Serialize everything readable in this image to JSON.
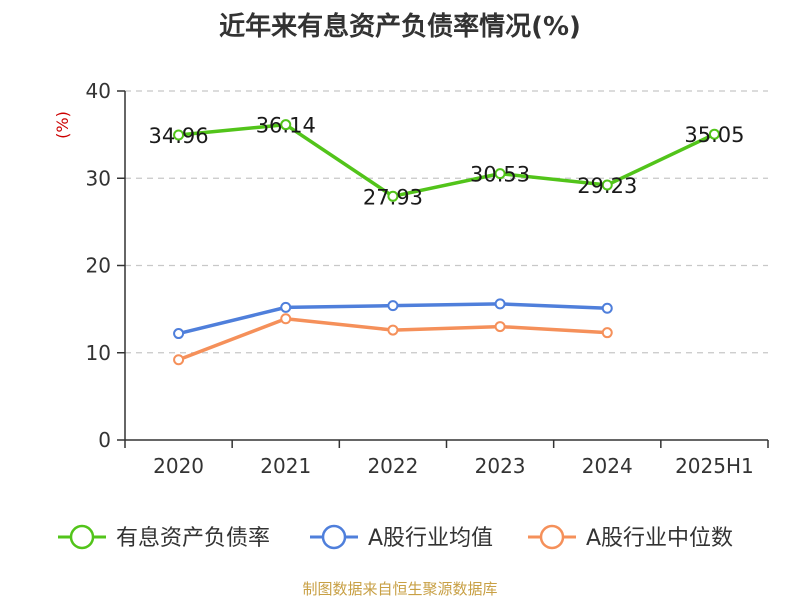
{
  "chart_data": {
    "type": "line",
    "title": "近年来有息资产负债率情况(%)",
    "ylabel": "(%)",
    "xlabel": "",
    "categories": [
      "2020",
      "2021",
      "2022",
      "2023",
      "2024",
      "2025H1"
    ],
    "ylim": [
      0,
      40
    ],
    "yticks": [
      0,
      10,
      20,
      30,
      40
    ],
    "grid": true,
    "legend_position": "bottom",
    "series": [
      {
        "name": "有息资产负债率",
        "color": "#52c41a",
        "values": [
          34.96,
          36.14,
          27.93,
          30.53,
          29.23,
          35.05
        ],
        "labels": [
          "34.96",
          "36.14",
          "27.93",
          "30.53",
          "29.23",
          "35.05"
        ]
      },
      {
        "name": "A股行业均值",
        "color": "#4f7fdb",
        "values": [
          12.2,
          15.2,
          15.4,
          15.6,
          15.1,
          null
        ]
      },
      {
        "name": "A股行业中位数",
        "color": "#f5905a",
        "values": [
          9.2,
          13.9,
          12.6,
          13.0,
          12.3,
          null
        ]
      }
    ]
  },
  "source": "制图数据来自恒生聚源数据库"
}
